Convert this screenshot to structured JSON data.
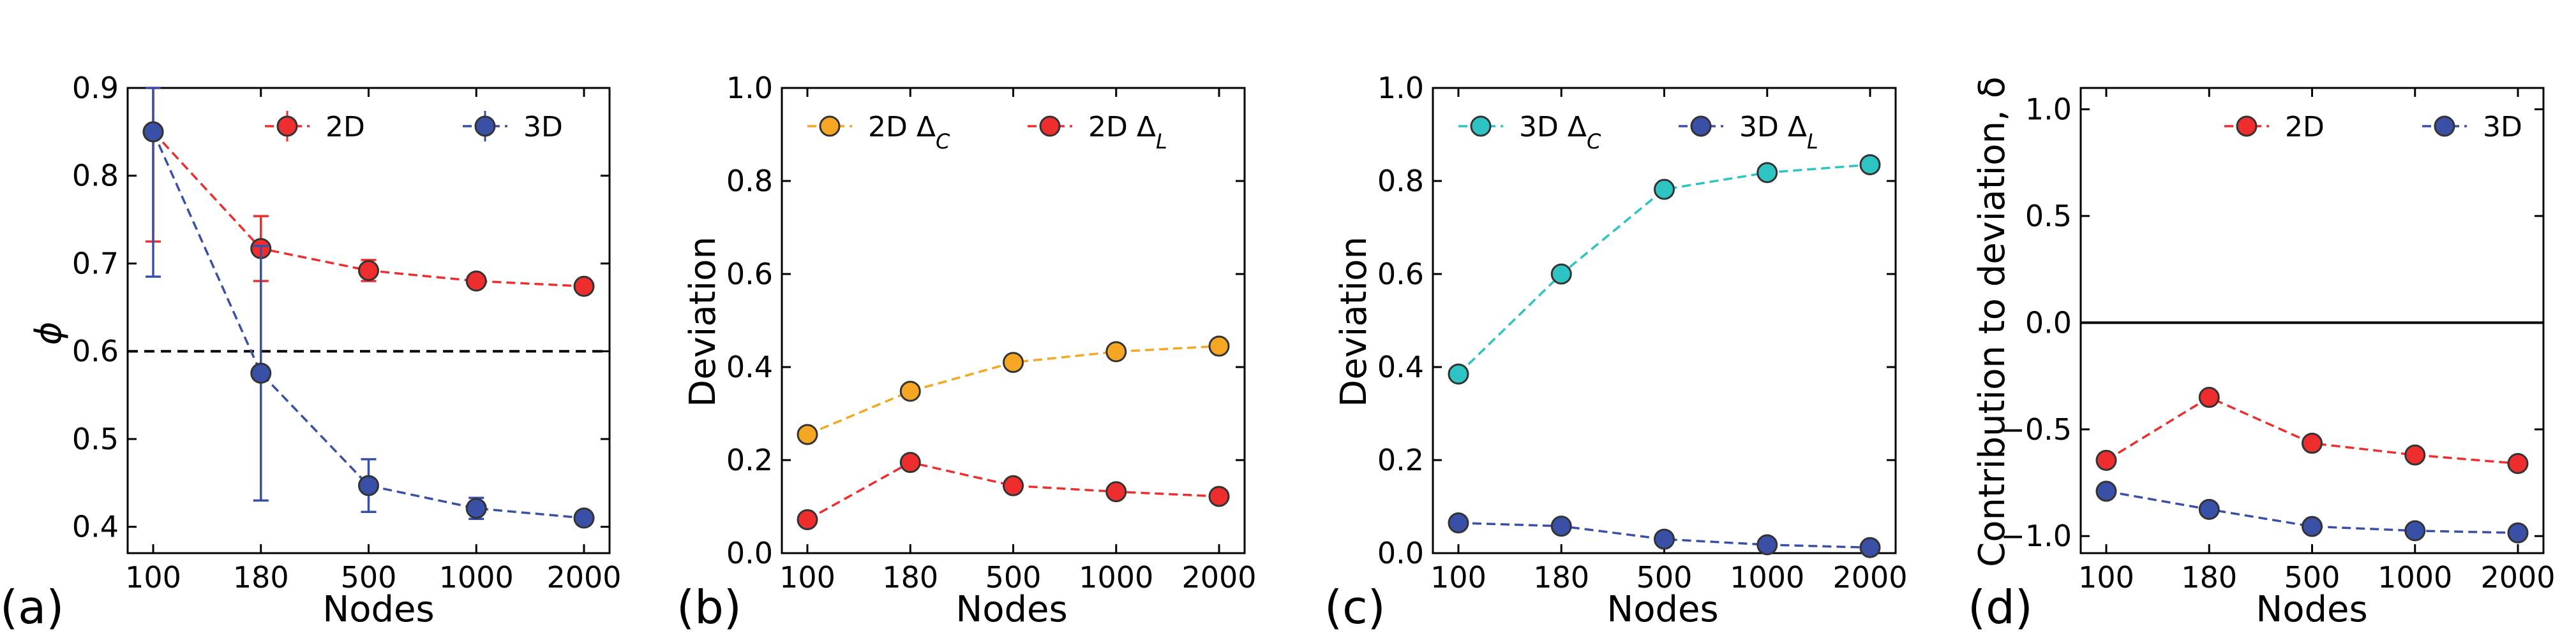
{
  "chart_data": [
    {
      "type": "line",
      "panel_label": "(a)",
      "categories": [
        "100",
        "180",
        "500",
        "1000",
        "2000"
      ],
      "xlabel": "Nodes",
      "ylabel": "ϕ",
      "ylim": [
        0.37,
        0.9
      ],
      "yticks": [
        0.4,
        0.5,
        0.6,
        0.7,
        0.8,
        0.9
      ],
      "ytick_labels": [
        "0.4",
        "0.5",
        "0.6",
        "0.7",
        "0.8",
        "0.9"
      ],
      "hline": 0.6,
      "legend_position": "top-right",
      "series": [
        {
          "name": "2D",
          "color": "#ee2e2e",
          "edge": "#333333",
          "values": [
            0.85,
            0.717,
            0.692,
            0.68,
            0.674
          ],
          "errors": [
            0.125,
            0.037,
            0.012,
            0.006,
            0.005
          ]
        },
        {
          "name": "3D",
          "color": "#3a4fa6",
          "edge": "#333333",
          "values": [
            0.85,
            0.575,
            0.447,
            0.421,
            0.41
          ],
          "errors": [
            0.165,
            0.145,
            0.03,
            0.012,
            0.006
          ]
        }
      ]
    },
    {
      "type": "line",
      "panel_label": "(b)",
      "categories": [
        "100",
        "180",
        "500",
        "1000",
        "2000"
      ],
      "xlabel": "Nodes",
      "ylabel": "Deviation",
      "ylim": [
        0,
        1
      ],
      "yticks": [
        0,
        0.2,
        0.4,
        0.6,
        0.8,
        1.0
      ],
      "ytick_labels": [
        "0.0",
        "0.2",
        "0.4",
        "0.6",
        "0.8",
        "1.0"
      ],
      "legend_position": "top",
      "series": [
        {
          "name": "2D Δ",
          "subscript": "C",
          "color": "#f5a623",
          "edge": "#333333",
          "values": [
            0.255,
            0.348,
            0.41,
            0.433,
            0.445
          ]
        },
        {
          "name": "2D Δ",
          "subscript": "L",
          "color": "#ee2e2e",
          "edge": "#333333",
          "values": [
            0.072,
            0.195,
            0.145,
            0.132,
            0.122
          ]
        }
      ]
    },
    {
      "type": "line",
      "panel_label": "(c)",
      "categories": [
        "100",
        "180",
        "500",
        "1000",
        "2000"
      ],
      "xlabel": "Nodes",
      "ylabel": "Deviation",
      "ylim": [
        0,
        1
      ],
      "yticks": [
        0,
        0.2,
        0.4,
        0.6,
        0.8,
        1.0
      ],
      "ytick_labels": [
        "0.0",
        "0.2",
        "0.4",
        "0.6",
        "0.8",
        "1.0"
      ],
      "legend_position": "top",
      "series": [
        {
          "name": "3D Δ",
          "subscript": "C",
          "color": "#2ec4c4",
          "edge": "#333333",
          "values": [
            0.385,
            0.6,
            0.782,
            0.818,
            0.835
          ]
        },
        {
          "name": "3D Δ",
          "subscript": "L",
          "color": "#3a4fa6",
          "edge": "#333333",
          "values": [
            0.065,
            0.058,
            0.03,
            0.018,
            0.012
          ]
        }
      ]
    },
    {
      "type": "line",
      "panel_label": "(d)",
      "categories": [
        "100",
        "180",
        "500",
        "1000",
        "2000"
      ],
      "xlabel": "Nodes",
      "ylabel": "Contribution to deviation, δ",
      "ylim": [
        -1.08,
        1.1
      ],
      "yticks": [
        -1.0,
        -0.5,
        0.0,
        0.5,
        1.0
      ],
      "ytick_labels": [
        "−1.0",
        "−0.5",
        "0.0",
        "0.5",
        "1.0"
      ],
      "hline": 0.0,
      "legend_position": "top-right",
      "series": [
        {
          "name": "2D",
          "color": "#ee2e2e",
          "edge": "#333333",
          "values": [
            -0.645,
            -0.35,
            -0.565,
            -0.62,
            -0.66
          ]
        },
        {
          "name": "3D",
          "color": "#3a4fa6",
          "edge": "#333333",
          "values": [
            -0.79,
            -0.875,
            -0.955,
            -0.975,
            -0.985
          ]
        }
      ]
    }
  ]
}
